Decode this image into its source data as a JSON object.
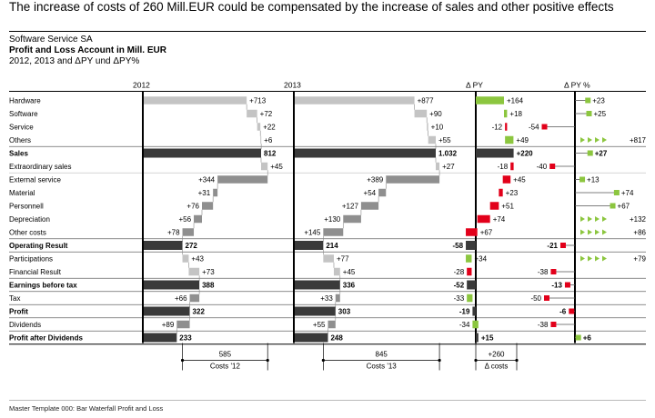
{
  "headline": "The increase of costs of 260 Mill.EUR could be compensated by the increase of sales and other positive effects",
  "subtitle": {
    "company": "Software Service SA",
    "report": "Profit and Loss Account in Mill. EUR",
    "period": "2012, 2013 and ΔPY und ΔPY%"
  },
  "footer": "Master Template 000: Bar Waterfall Profit and Loss",
  "colors": {
    "dark": "#3a3a3a",
    "mid": "#8f8f8f",
    "light": "#c4c4c4",
    "positive": "#8cc63f",
    "negative": "#e2001a"
  },
  "chart_data": {
    "type": "bar",
    "panel_titles": [
      "2012",
      "2013",
      "Δ PY",
      "Δ PY %"
    ],
    "rows": [
      {
        "label": "Hardware",
        "bold": false,
        "kind": "pos",
        "v12": 713,
        "v13": 877,
        "dpy": 164,
        "dpyp": 23,
        "t12": "+713",
        "t13": "+877",
        "tdpy": "+164",
        "tdpyp": "+23"
      },
      {
        "label": "Software",
        "bold": false,
        "kind": "pos",
        "v12": 72,
        "v13": 90,
        "dpy": 18,
        "dpyp": 25,
        "t12": "+72",
        "t13": "+90",
        "tdpy": "+18",
        "tdpyp": "+25"
      },
      {
        "label": "Service",
        "bold": false,
        "kind": "pos",
        "v12": 22,
        "v13": 10,
        "dpy": -12,
        "dpyp": -54,
        "t12": "+22",
        "t13": "+10",
        "tdpy": "-12",
        "tdpyp": "-54"
      },
      {
        "label": "Others",
        "bold": false,
        "kind": "pos",
        "v12": 6,
        "v13": 55,
        "dpy": 49,
        "dpyp": 817,
        "t12": "+6",
        "t13": "+55",
        "tdpy": "+49",
        "tdpyp": "+817"
      },
      {
        "label": "Sales",
        "bold": true,
        "kind": "total",
        "v12": 812,
        "v13": 1032,
        "dpy": 220,
        "dpyp": 27,
        "t12": "812",
        "t13": "1.032",
        "tdpy": "+220",
        "tdpyp": "+27"
      },
      {
        "label": "Extraordinary sales",
        "bold": false,
        "kind": "pos",
        "v12": 45,
        "v13": 27,
        "dpy": -18,
        "dpyp": -40,
        "t12": "+45",
        "t13": "+27",
        "tdpy": "-18",
        "tdpyp": "-40"
      },
      {
        "label": "External service",
        "bold": false,
        "kind": "neg",
        "v12": 344,
        "v13": 389,
        "dpy": 45,
        "dpyp": 13,
        "t12": "+344",
        "t13": "+389",
        "tdpy": "+45",
        "tdpyp": "+13"
      },
      {
        "label": "Material",
        "bold": false,
        "kind": "neg",
        "v12": 31,
        "v13": 54,
        "dpy": 23,
        "dpyp": 74,
        "t12": "+31",
        "t13": "+54",
        "tdpy": "+23",
        "tdpyp": "+74"
      },
      {
        "label": "Personnell",
        "bold": false,
        "kind": "neg",
        "v12": 76,
        "v13": 127,
        "dpy": 51,
        "dpyp": 67,
        "t12": "+76",
        "t13": "+127",
        "tdpy": "+51",
        "tdpyp": "+67"
      },
      {
        "label": "Depreciation",
        "bold": false,
        "kind": "neg",
        "v12": 56,
        "v13": 130,
        "dpy": 74,
        "dpyp": 132,
        "t12": "+56",
        "t13": "+130",
        "tdpy": "+74",
        "tdpyp": "+132"
      },
      {
        "label": "Other costs",
        "bold": false,
        "kind": "neg",
        "v12": 78,
        "v13": 145,
        "dpy": 67,
        "dpyp": 86,
        "t12": "+78",
        "t13": "+145",
        "tdpy": "+67",
        "tdpyp": "+86"
      },
      {
        "label": "Operating Result",
        "bold": true,
        "kind": "total",
        "v12": 272,
        "v13": 214,
        "dpy": -58,
        "dpyp": -21,
        "t12": "272",
        "t13": "214",
        "tdpy": "-58",
        "tdpyp": "-21"
      },
      {
        "label": "Participations",
        "bold": false,
        "kind": "pos",
        "v12": 43,
        "v13": 77,
        "dpy": 34,
        "dpyp": 79,
        "t12": "+43",
        "t13": "+77",
        "tdpy": "+34",
        "tdpyp": "+79"
      },
      {
        "label": "Financial Result",
        "bold": false,
        "kind": "pos",
        "v12": 73,
        "v13": 45,
        "dpy": -28,
        "dpyp": -38,
        "t12": "+73",
        "t13": "+45",
        "tdpy": "-28",
        "tdpyp": "-38"
      },
      {
        "label": "Earnings before tax",
        "bold": true,
        "kind": "total",
        "v12": 388,
        "v13": 336,
        "dpy": -52,
        "dpyp": -13,
        "t12": "388",
        "t13": "336",
        "tdpy": "-52",
        "tdpyp": "-13"
      },
      {
        "label": "Tax",
        "bold": false,
        "kind": "neg",
        "v12": 66,
        "v13": 33,
        "dpy": -33,
        "dpyp": -50,
        "t12": "+66",
        "t13": "+33",
        "tdpy": "-33",
        "tdpyp": "-50"
      },
      {
        "label": "Profit",
        "bold": true,
        "kind": "total",
        "v12": 322,
        "v13": 303,
        "dpy": -19,
        "dpyp": -6,
        "t12": "322",
        "t13": "303",
        "tdpy": "-19",
        "tdpyp": "-6"
      },
      {
        "label": "Dividends",
        "bold": false,
        "kind": "neg",
        "v12": 89,
        "v13": 55,
        "dpy": -34,
        "dpyp": -38,
        "t12": "+89",
        "t13": "+55",
        "tdpy": "-34",
        "tdpyp": "-38"
      },
      {
        "label": "Profit after Dividends",
        "bold": true,
        "kind": "total",
        "v12": 233,
        "v13": 248,
        "dpy": 15,
        "dpyp": 6,
        "t12": "233",
        "t13": "248",
        "tdpy": "+15",
        "tdpyp": "+6"
      }
    ],
    "cost_brackets": [
      {
        "value": 585,
        "text": "585",
        "label": "Costs '12"
      },
      {
        "value": 845,
        "text": "845",
        "label": "Costs '13"
      },
      {
        "value": 260,
        "text": "+260",
        "label": "Δ costs"
      }
    ]
  }
}
